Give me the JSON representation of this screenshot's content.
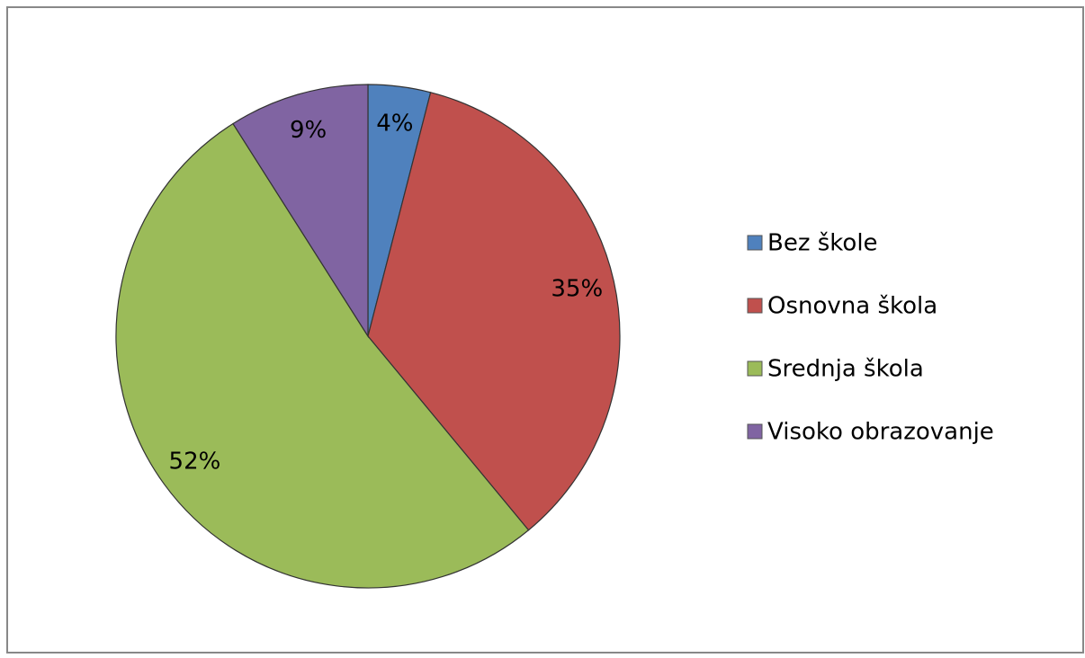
{
  "chart_data": {
    "type": "pie",
    "categories": [
      "Bez škole",
      "Osnovna škola",
      "Srednja škola",
      "Visoko obrazovanje"
    ],
    "values": [
      4,
      35,
      52,
      9
    ],
    "value_labels": [
      "4%",
      "35%",
      "52%",
      "9%"
    ],
    "colors": [
      "#4f81bd",
      "#c0504d",
      "#9bbb59",
      "#8064a2"
    ],
    "legend": "right"
  }
}
